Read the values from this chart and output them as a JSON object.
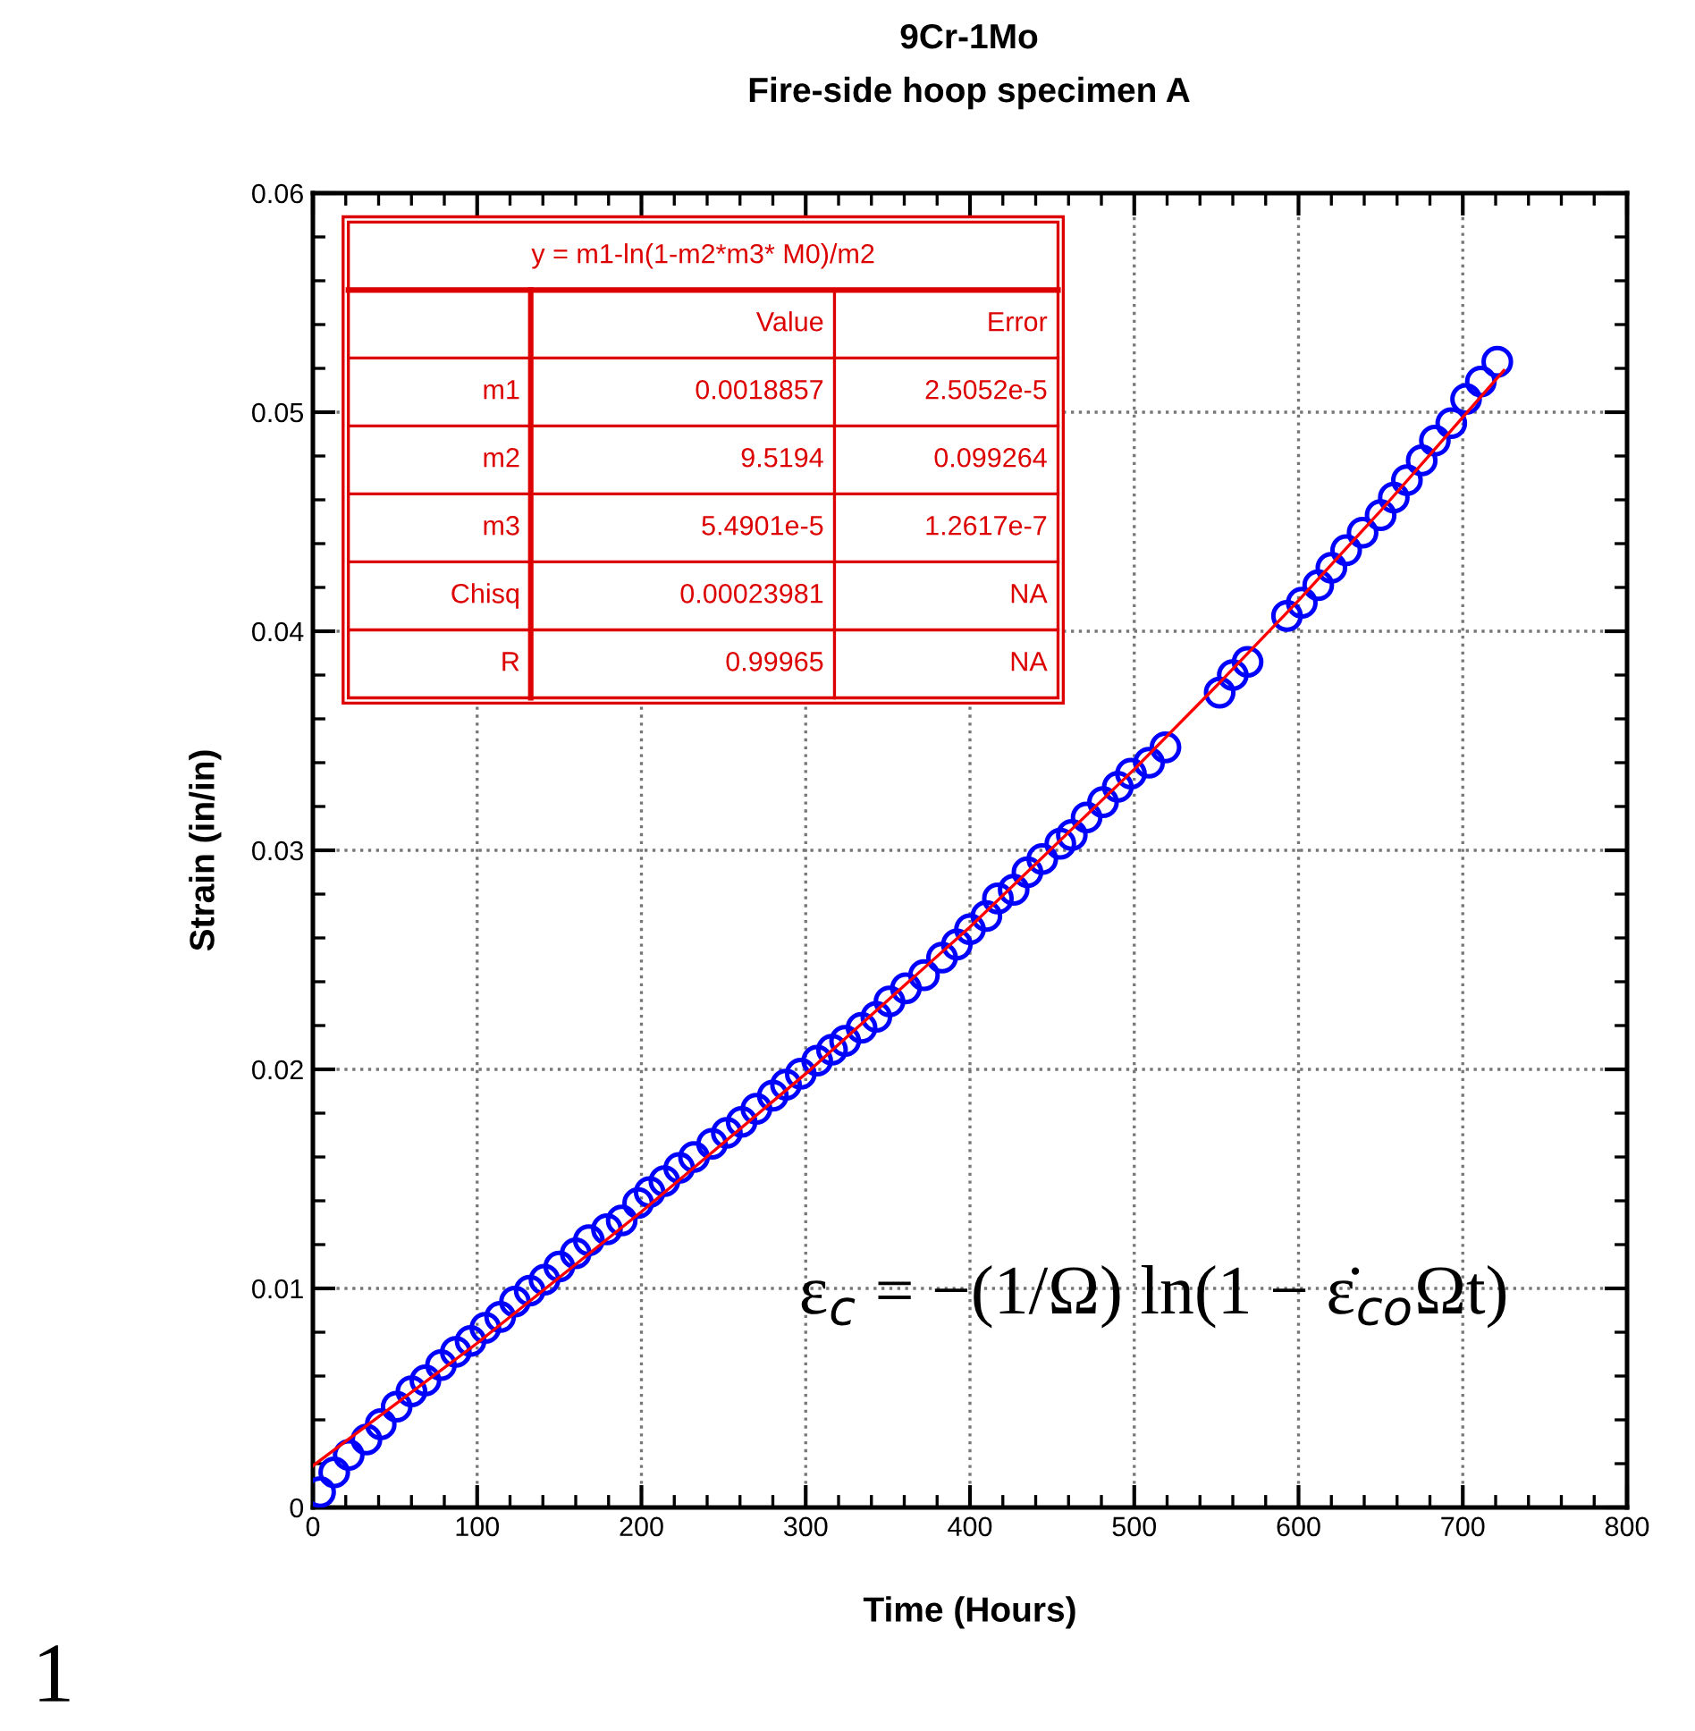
{
  "chart_data": {
    "type": "scatter",
    "title": "9Cr-1Mo",
    "subtitle": "Fire-side hoop specimen A",
    "xlabel": "Time (Hours)",
    "ylabel": "Strain (in/in)",
    "x": [
      4.4,
      13,
      21.8,
      32.6,
      41.3,
      51,
      60,
      68.5,
      78,
      87,
      96,
      105,
      114,
      123,
      132,
      141,
      150,
      160,
      168,
      179,
      188,
      198,
      205,
      214,
      223,
      232,
      243,
      252,
      261,
      270,
      280,
      288,
      297,
      307,
      316,
      324,
      334,
      343,
      351,
      361,
      372,
      383,
      392,
      400,
      410,
      417,
      426.6,
      435,
      444,
      455,
      462,
      471,
      481,
      490,
      498,
      509,
      519,
      552,
      560,
      569,
      593,
      602,
      612,
      620,
      629,
      639,
      650,
      658,
      666,
      675,
      683,
      693,
      702,
      711,
      721
    ],
    "series": [
      {
        "color": "#0000ff",
        "marker": "circle",
        "values": [
          0.0007,
          0.0016,
          0.0024,
          0.0031,
          0.0038,
          0.0046,
          0.0053,
          0.0058,
          0.0065,
          0.0071,
          0.0076,
          0.0082,
          0.0087,
          0.0094,
          0.0099,
          0.0104,
          0.011,
          0.0116,
          0.0122,
          0.0127,
          0.0131,
          0.0139,
          0.0144,
          0.0149,
          0.0155,
          0.016,
          0.0166,
          0.0171,
          0.0176,
          0.0182,
          0.0188,
          0.0193,
          0.0198,
          0.0204,
          0.0209,
          0.0213,
          0.0219,
          0.0224,
          0.0231,
          0.0237,
          0.0243,
          0.0251,
          0.0257,
          0.0264,
          0.027,
          0.0278,
          0.0282,
          0.029,
          0.0296,
          0.0303,
          0.0307,
          0.0315,
          0.0322,
          0.0329,
          0.0335,
          0.034,
          0.0347,
          0.0372,
          0.038,
          0.0386,
          0.0407,
          0.0413,
          0.0421,
          0.0429,
          0.0437,
          0.0445,
          0.0453,
          0.0461,
          0.0469,
          0.0478,
          0.0487,
          0.0495,
          0.0506,
          0.0514,
          0.0523
        ]
      },
      {
        "type": "line",
        "color": "#ff0000",
        "line_style": "solid",
        "x": [
          0,
          100,
          200,
          300,
          400,
          500,
          550,
          600,
          650,
          725
        ],
        "values": [
          0.0019,
          0.0075,
          0.0135,
          0.0198,
          0.0265,
          0.0337,
          0.0375,
          0.0414,
          0.0455,
          0.0519
        ]
      }
    ],
    "xlim": [
      0,
      800
    ],
    "ylim": [
      0,
      0.06
    ],
    "xticks": [
      0,
      100,
      200,
      300,
      400,
      500,
      600,
      700,
      800
    ],
    "yticks": [
      0,
      0.01,
      0.02,
      0.03,
      0.04,
      0.05,
      0.06
    ],
    "grid": true,
    "legend": false,
    "annotations": [
      "y = m1-ln(1-m2*m3* M0)/m2",
      "Value",
      "Error",
      "m1",
      "0.0018857",
      "2.5052e-5",
      "m2",
      "9.5194",
      "0.099264",
      "m3",
      "5.4901e-5",
      "1.2617e-7",
      "Chisq",
      "0.00023981",
      "NA",
      "R",
      "0.99965",
      "NA",
      "ε$_{c}$ = −(1/Ω) ln(1 − ε̇$_{co}$Ωt)",
      "1"
    ]
  }
}
